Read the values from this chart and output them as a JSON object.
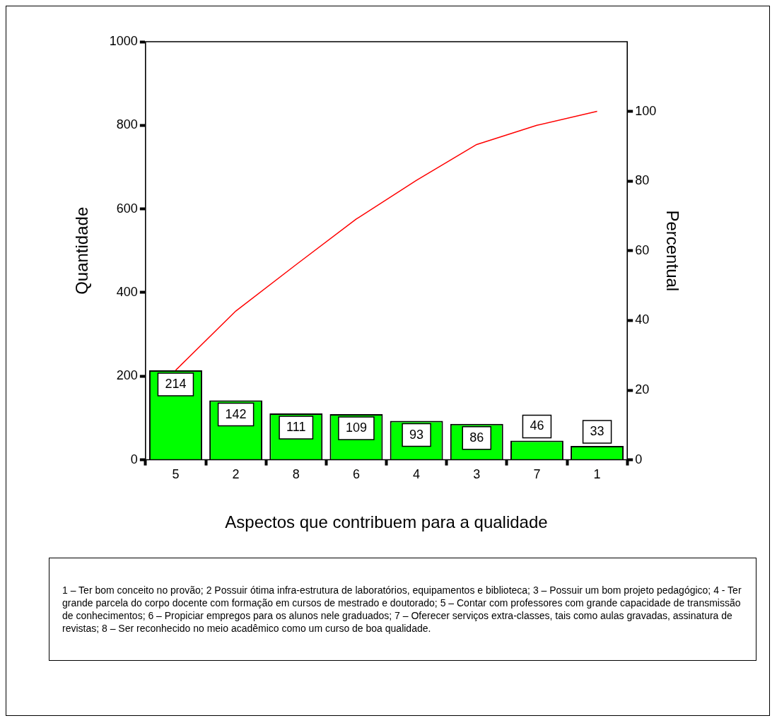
{
  "chart_data": {
    "type": "bar",
    "categories": [
      "5",
      "2",
      "8",
      "6",
      "4",
      "3",
      "7",
      "1"
    ],
    "series": [
      {
        "color": "#00ff00",
        "values": [
          214,
          142,
          111,
          109,
          93,
          86,
          46,
          33
        ],
        "value_labels": [
          "214",
          "142",
          "111",
          "109",
          "93",
          "86",
          "46",
          "33"
        ]
      },
      {
        "type": "line",
        "axis": "y2",
        "color": "#ff0000",
        "values": [
          25.7,
          42.7,
          56.0,
          69.1,
          80.2,
          90.5,
          96.0,
          100
        ]
      }
    ],
    "xlabel": "Aspectos que contribuem para a qualidade",
    "ylabel": "Quantidade",
    "y2label": "Percentual",
    "ylim": [
      0,
      1000
    ],
    "yticks": [
      0,
      200,
      400,
      600,
      800,
      1000
    ],
    "y2lim": [
      0,
      120
    ],
    "y2ticks": [
      0,
      20,
      40,
      60,
      80,
      100
    ],
    "grid": false,
    "legend": false,
    "annotations": [
      "1 – Ter bom conceito no provão; 2 Possuir ótima infra-estrutura de laboratórios, equipamentos e biblioteca; 3 – Possuir um bom projeto pedagógico; 4 -  Ter grande parcela do corpo docente com formação em cursos de mestrado e doutorado; 5 – Contar com professores com grande capacidade de transmissão de conhecimentos; 6 – Propiciar empregos para os alunos nele graduados; 7 – Oferecer serviços extra-classes, tais como aulas gravadas, assinatura de revistas; 8 – Ser reconhecido no meio acadêmico como um curso de boa qualidade."
    ]
  }
}
